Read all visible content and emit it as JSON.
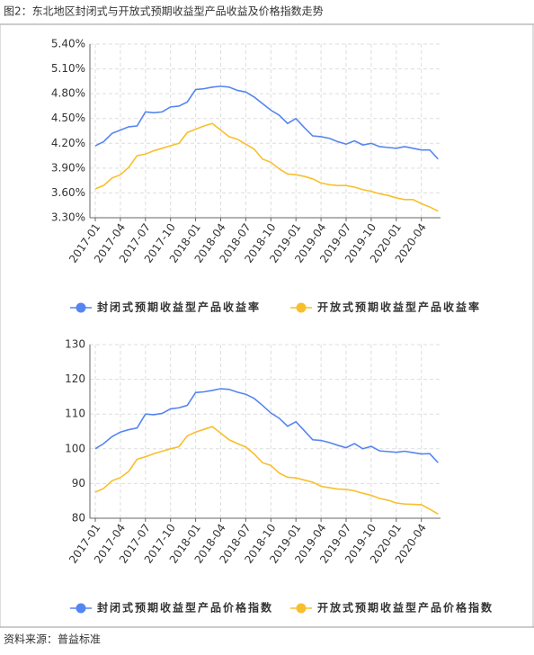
{
  "title": "图2：东北地区封闭式与开放式预期收益型产品收益及价格指数走势",
  "source": "资料来源：普益标准",
  "chart_data": [
    {
      "type": "line",
      "categories": [
        "2017-01",
        null,
        null,
        "2017-04",
        null,
        null,
        "2017-07",
        null,
        null,
        "2017-10",
        null,
        null,
        "2018-01",
        null,
        null,
        "2018-04",
        null,
        null,
        "2018-07",
        null,
        null,
        "2018-10",
        null,
        null,
        "2019-01",
        null,
        null,
        "2019-04",
        null,
        null,
        "2019-07",
        null,
        null,
        "2019-10",
        null,
        null,
        "2020-01",
        null,
        null,
        "2020-04",
        null,
        null
      ],
      "ylim": [
        3.3,
        5.4
      ],
      "yticks": [
        {
          "value": 3.3,
          "label": "3.30%"
        },
        {
          "value": 3.6,
          "label": "3.60%"
        },
        {
          "value": 3.9,
          "label": "3.90%"
        },
        {
          "value": 4.2,
          "label": "4.20%"
        },
        {
          "value": 4.5,
          "label": "4.50%"
        },
        {
          "value": 4.8,
          "label": "4.80%"
        },
        {
          "value": 5.1,
          "label": "5.10%"
        },
        {
          "value": 5.4,
          "label": "5.40%"
        }
      ],
      "grid": true,
      "series": [
        {
          "name": "封闭式预期收益型产品收益率",
          "color": "#5585f0",
          "values": [
            4.17,
            4.22,
            4.32,
            4.36,
            4.4,
            4.41,
            4.58,
            4.57,
            4.58,
            4.64,
            4.65,
            4.7,
            4.85,
            4.86,
            4.88,
            4.89,
            4.88,
            4.84,
            4.82,
            4.76,
            4.68,
            4.6,
            4.54,
            4.44,
            4.5,
            4.39,
            4.29,
            4.28,
            4.26,
            4.22,
            4.19,
            4.23,
            4.18,
            4.2,
            4.16,
            4.15,
            4.14,
            4.16,
            4.14,
            4.12,
            4.12,
            4.01
          ]
        },
        {
          "name": "开放式预期收益型产品收益率",
          "color": "#f8bf2c",
          "values": [
            3.65,
            3.69,
            3.78,
            3.82,
            3.91,
            4.05,
            4.07,
            4.11,
            4.14,
            4.17,
            4.2,
            4.33,
            4.37,
            4.41,
            4.44,
            4.36,
            4.28,
            4.25,
            4.19,
            4.13,
            4.01,
            3.97,
            3.89,
            3.83,
            3.82,
            3.8,
            3.77,
            3.72,
            3.7,
            3.69,
            3.69,
            3.67,
            3.64,
            3.62,
            3.59,
            3.57,
            3.54,
            3.52,
            3.52,
            3.47,
            3.43,
            3.38
          ]
        }
      ]
    },
    {
      "type": "line",
      "categories": [
        "2017-01",
        null,
        null,
        "2017-04",
        null,
        null,
        "2017-07",
        null,
        null,
        "2017-10",
        null,
        null,
        "2018-01",
        null,
        null,
        "2018-04",
        null,
        null,
        "2018-07",
        null,
        null,
        "2018-10",
        null,
        null,
        "2019-01",
        null,
        null,
        "2019-04",
        null,
        null,
        "2019-07",
        null,
        null,
        "2019-10",
        null,
        null,
        "2020-01",
        null,
        null,
        "2020-04",
        null,
        null
      ],
      "ylim": [
        80,
        130
      ],
      "yticks": [
        80,
        90,
        100,
        110,
        120,
        130
      ],
      "grid": true,
      "series": [
        {
          "name": "封闭式预期收益型产品价格指数",
          "color": "#5585f0",
          "values": [
            100,
            101.5,
            103.5,
            104.8,
            105.5,
            106,
            110,
            109.8,
            110.2,
            111.5,
            111.8,
            112.5,
            116.2,
            116.4,
            116.8,
            117.3,
            117.1,
            116.3,
            115.7,
            114.5,
            112.5,
            110.3,
            108.8,
            106.5,
            107.8,
            105.2,
            102.6,
            102.4,
            101.8,
            101,
            100.3,
            101.5,
            100,
            100.7,
            99.4,
            99.2,
            99,
            99.3,
            98.9,
            98.5,
            98.6,
            96
          ]
        },
        {
          "name": "开放式预期收益型产品价格指数",
          "color": "#f8bf2c",
          "values": [
            87.5,
            88.6,
            90.8,
            91.7,
            93.5,
            97,
            97.7,
            98.6,
            99.3,
            100,
            100.6,
            103.7,
            104.8,
            105.6,
            106.4,
            104.5,
            102.6,
            101.5,
            100.5,
            98.5,
            96,
            95.2,
            93,
            91.8,
            91.6,
            91,
            90.4,
            89.2,
            88.8,
            88.4,
            88.3,
            87.9,
            87.2,
            86.6,
            85.7,
            85.2,
            84.4,
            84.1,
            84,
            83.9,
            82.6,
            81.2
          ]
        }
      ]
    }
  ]
}
